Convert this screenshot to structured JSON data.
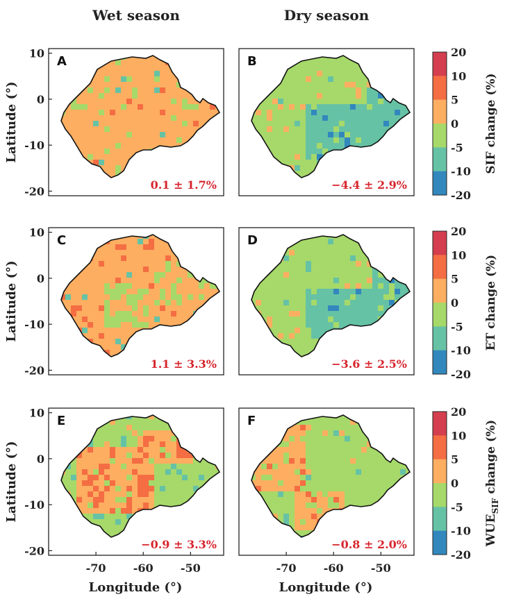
{
  "figure": {
    "col_titles": [
      "Wet season",
      "Dry season"
    ],
    "ylabel": "Latitude (°)",
    "xlabel": "Longitude (°)"
  },
  "chart_data": [
    {
      "type": "heatmap",
      "panel": "A",
      "season": "Wet season",
      "variable": "SIF change (%)",
      "stat": "0.1 ± 1.7%",
      "dominant_class": "0 to 5",
      "ylim": [
        -21,
        11
      ],
      "xlim": [
        -80,
        -43
      ],
      "yticks": [
        "10",
        "0",
        "-10",
        "-20"
      ],
      "xticks": []
    },
    {
      "type": "heatmap",
      "panel": "B",
      "season": "Dry season",
      "variable": "SIF change (%)",
      "stat": "−4.4 ± 2.9%",
      "dominant_class": "-5 to 0 / -10 to -5",
      "ylim": [
        -21,
        11
      ],
      "xlim": [
        -80,
        -43
      ],
      "yticks": [],
      "xticks": []
    },
    {
      "type": "heatmap",
      "panel": "C",
      "season": "Wet season",
      "variable": "ET change (%)",
      "stat": "1.1 ± 3.3%",
      "dominant_class": "0 to 5",
      "ylim": [
        -21,
        11
      ],
      "xlim": [
        -80,
        -43
      ],
      "yticks": [
        "10",
        "0",
        "-10",
        "-20"
      ],
      "xticks": []
    },
    {
      "type": "heatmap",
      "panel": "D",
      "season": "Dry season",
      "variable": "ET change (%)",
      "stat": "−3.6 ± 2.5%",
      "dominant_class": "-5 to 0 / -10 to -5",
      "ylim": [
        -21,
        11
      ],
      "xlim": [
        -80,
        -43
      ],
      "yticks": [],
      "xticks": []
    },
    {
      "type": "heatmap",
      "panel": "E",
      "season": "Wet season",
      "variable": "WUE_SIF change (%)",
      "stat": "−0.9 ± 3.3%",
      "dominant_class": "-5 to 0 / 0 to 5",
      "ylim": [
        -21,
        11
      ],
      "xlim": [
        -80,
        -43
      ],
      "yticks": [
        "10",
        "0",
        "-10",
        "-20"
      ],
      "xticks": [
        "-70",
        "-60",
        "-50"
      ]
    },
    {
      "type": "heatmap",
      "panel": "F",
      "season": "Dry season",
      "variable": "WUE_SIF change (%)",
      "stat": "−0.8 ± 2.0%",
      "dominant_class": "-5 to 0",
      "ylim": [
        -21,
        11
      ],
      "xlim": [
        -80,
        -43
      ],
      "yticks": [],
      "xticks": [
        "-70",
        "-60",
        "-50"
      ]
    }
  ],
  "colorbars": [
    {
      "label_main": "SIF change (%)",
      "label_sub": ""
    },
    {
      "label_main": "ET change (%)",
      "label_sub": ""
    },
    {
      "label_main": "WUE",
      "label_sub": "SIF",
      "label_tail": " change (%)"
    }
  ],
  "colorbar_ticks": [
    "20",
    "10",
    "5",
    "0",
    "-5",
    "-10",
    "-20"
  ],
  "colorbar_classes": [
    {
      "range": "10 to 20",
      "color": "#d53e4f"
    },
    {
      "range": "5 to 10",
      "color": "#f46d43"
    },
    {
      "range": "0 to 5",
      "color": "#fdae61"
    },
    {
      "range": "-5 to 0",
      "color": "#a6d96a"
    },
    {
      "range": "-10 to -5",
      "color": "#66c2a5"
    },
    {
      "range": "-20 to -10",
      "color": "#3288bd"
    }
  ]
}
